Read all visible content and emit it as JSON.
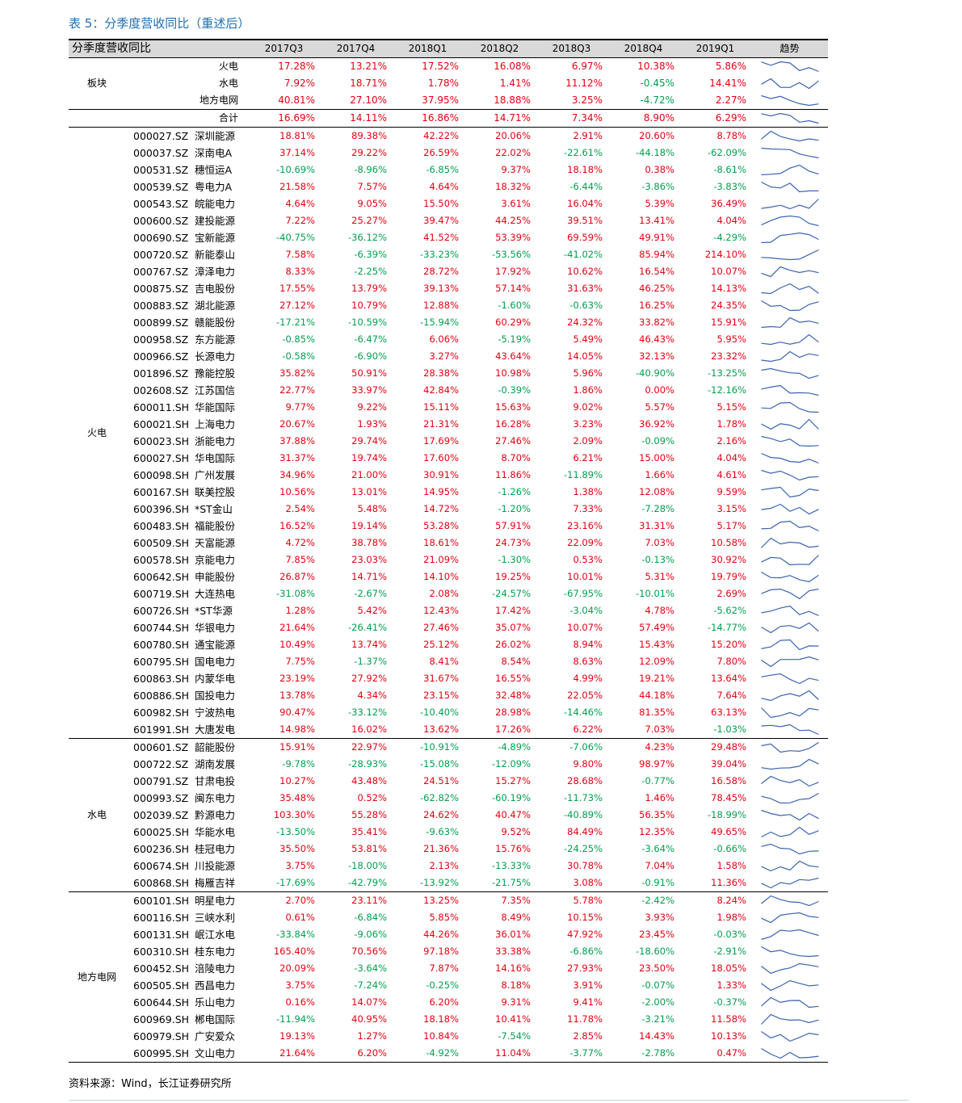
{
  "title": "表 5：分季度营收同比（重述后）",
  "source": "资料来源：Wind，长江证券研究所",
  "colors": {
    "positive": "#e60012",
    "negative": "#00a050",
    "header_bg": "#d9d9d9",
    "title": "#1f6fb0",
    "sparkline": "#3a64b0"
  },
  "header": {
    "label": "分季度营收同比",
    "quarters": [
      "2017Q3",
      "2017Q4",
      "2018Q1",
      "2018Q2",
      "2018Q3",
      "2018Q4",
      "2019Q1"
    ],
    "trend": "趋势"
  },
  "sector_group": {
    "label": "板块",
    "rows": [
      {
        "name": "火电",
        "values": [
          "17.28%",
          "13.21%",
          "17.52%",
          "16.08%",
          "6.97%",
          "10.38%",
          "5.86%"
        ]
      },
      {
        "name": "水电",
        "values": [
          "7.92%",
          "18.71%",
          "1.78%",
          "1.41%",
          "11.12%",
          "-0.45%",
          "14.41%"
        ]
      },
      {
        "name": "地方电网",
        "values": [
          "40.81%",
          "27.10%",
          "37.95%",
          "18.88%",
          "3.25%",
          "-4.72%",
          "2.27%"
        ]
      }
    ]
  },
  "total": {
    "name": "合计",
    "values": [
      "16.69%",
      "14.11%",
      "16.86%",
      "14.71%",
      "7.34%",
      "8.90%",
      "6.29%"
    ]
  },
  "groups": [
    {
      "label": "火电",
      "rows": [
        {
          "code": "000027.SZ",
          "name": "深圳能源",
          "values": [
            "18.81%",
            "89.38%",
            "42.22%",
            "20.06%",
            "2.91%",
            "20.60%",
            "8.78%"
          ]
        },
        {
          "code": "000037.SZ",
          "name": "深南电A",
          "values": [
            "37.14%",
            "29.22%",
            "26.59%",
            "22.02%",
            "-22.61%",
            "-44.18%",
            "-62.09%"
          ]
        },
        {
          "code": "000531.SZ",
          "name": "穗恒运A",
          "values": [
            "-10.69%",
            "-8.96%",
            "-6.85%",
            "9.37%",
            "18.18%",
            "0.38%",
            "-8.61%"
          ]
        },
        {
          "code": "000539.SZ",
          "name": "粤电力A",
          "values": [
            "21.58%",
            "7.57%",
            "4.64%",
            "18.32%",
            "-6.44%",
            "-3.86%",
            "-3.83%"
          ]
        },
        {
          "code": "000543.SZ",
          "name": "皖能电力",
          "values": [
            "4.64%",
            "9.05%",
            "15.50%",
            "3.61%",
            "16.04%",
            "5.39%",
            "36.49%"
          ]
        },
        {
          "code": "000600.SZ",
          "name": "建投能源",
          "values": [
            "7.22%",
            "25.27%",
            "39.47%",
            "44.25%",
            "39.51%",
            "13.41%",
            "4.04%"
          ]
        },
        {
          "code": "000690.SZ",
          "name": "宝新能源",
          "values": [
            "-40.75%",
            "-36.12%",
            "41.52%",
            "53.39%",
            "69.59%",
            "49.91%",
            "-4.29%"
          ]
        },
        {
          "code": "000720.SZ",
          "name": "新能泰山",
          "values": [
            "7.58%",
            "-6.39%",
            "-33.23%",
            "-53.56%",
            "-41.02%",
            "85.94%",
            "214.10%"
          ]
        },
        {
          "code": "000767.SZ",
          "name": "漳泽电力",
          "values": [
            "8.33%",
            "-2.25%",
            "28.72%",
            "17.92%",
            "10.62%",
            "16.54%",
            "10.07%"
          ]
        },
        {
          "code": "000875.SZ",
          "name": "吉电股份",
          "values": [
            "17.55%",
            "13.79%",
            "39.13%",
            "57.14%",
            "31.63%",
            "46.25%",
            "14.13%"
          ]
        },
        {
          "code": "000883.SZ",
          "name": "湖北能源",
          "values": [
            "27.12%",
            "10.79%",
            "12.88%",
            "-1.60%",
            "-0.63%",
            "16.25%",
            "24.35%"
          ]
        },
        {
          "code": "000899.SZ",
          "name": "赣能股份",
          "values": [
            "-17.21%",
            "-10.59%",
            "-15.94%",
            "60.29%",
            "24.32%",
            "33.82%",
            "15.91%"
          ]
        },
        {
          "code": "000958.SZ",
          "name": "东方能源",
          "values": [
            "-0.85%",
            "-6.47%",
            "6.06%",
            "-5.19%",
            "5.49%",
            "46.43%",
            "5.95%"
          ]
        },
        {
          "code": "000966.SZ",
          "name": "长源电力",
          "values": [
            "-0.58%",
            "-6.90%",
            "3.27%",
            "43.64%",
            "14.05%",
            "32.13%",
            "23.32%"
          ]
        },
        {
          "code": "001896.SZ",
          "name": "豫能控股",
          "values": [
            "35.82%",
            "50.91%",
            "28.38%",
            "10.98%",
            "5.96%",
            "-40.90%",
            "-13.25%"
          ]
        },
        {
          "code": "002608.SZ",
          "name": "江苏国信",
          "values": [
            "22.77%",
            "33.97%",
            "42.84%",
            "-0.39%",
            "1.86%",
            "0.00%",
            "-12.16%"
          ]
        },
        {
          "code": "600011.SH",
          "name": "华能国际",
          "values": [
            "9.77%",
            "9.22%",
            "15.11%",
            "15.63%",
            "9.02%",
            "5.57%",
            "5.15%"
          ]
        },
        {
          "code": "600021.SH",
          "name": "上海电力",
          "values": [
            "20.67%",
            "1.93%",
            "21.31%",
            "16.28%",
            "3.23%",
            "36.92%",
            "1.78%"
          ]
        },
        {
          "code": "600023.SH",
          "name": "浙能电力",
          "values": [
            "37.88%",
            "29.74%",
            "17.69%",
            "27.46%",
            "2.09%",
            "-0.09%",
            "2.16%"
          ]
        },
        {
          "code": "600027.SH",
          "name": "华电国际",
          "values": [
            "31.37%",
            "19.74%",
            "17.60%",
            "8.70%",
            "6.21%",
            "15.00%",
            "4.04%"
          ]
        },
        {
          "code": "600098.SH",
          "name": "广州发展",
          "values": [
            "34.96%",
            "21.00%",
            "30.91%",
            "11.86%",
            "-11.89%",
            "1.66%",
            "4.61%"
          ]
        },
        {
          "code": "600167.SH",
          "name": "联美控股",
          "values": [
            "10.56%",
            "13.01%",
            "14.95%",
            "-1.26%",
            "1.38%",
            "12.08%",
            "9.59%"
          ]
        },
        {
          "code": "600396.SH",
          "name": "*ST金山",
          "values": [
            "2.54%",
            "5.48%",
            "14.72%",
            "-1.20%",
            "7.33%",
            "-7.28%",
            "3.15%"
          ]
        },
        {
          "code": "600483.SH",
          "name": "福能股份",
          "values": [
            "16.52%",
            "19.14%",
            "53.28%",
            "57.91%",
            "23.16%",
            "31.31%",
            "5.17%"
          ]
        },
        {
          "code": "600509.SH",
          "name": "天富能源",
          "values": [
            "4.72%",
            "38.78%",
            "18.61%",
            "24.73%",
            "22.09%",
            "7.03%",
            "10.58%"
          ]
        },
        {
          "code": "600578.SH",
          "name": "京能电力",
          "values": [
            "7.85%",
            "23.03%",
            "21.09%",
            "-1.30%",
            "0.53%",
            "-0.13%",
            "30.92%"
          ]
        },
        {
          "code": "600642.SH",
          "name": "申能股份",
          "values": [
            "26.87%",
            "14.71%",
            "14.10%",
            "19.25%",
            "10.01%",
            "5.31%",
            "19.79%"
          ]
        },
        {
          "code": "600719.SH",
          "name": "大连热电",
          "values": [
            "-31.08%",
            "-2.67%",
            "2.08%",
            "-24.57%",
            "-67.95%",
            "-10.01%",
            "2.69%"
          ]
        },
        {
          "code": "600726.SH",
          "name": "*ST华源",
          "values": [
            "1.28%",
            "5.42%",
            "12.43%",
            "17.42%",
            "-3.04%",
            "4.78%",
            "-5.62%"
          ]
        },
        {
          "code": "600744.SH",
          "name": "华银电力",
          "values": [
            "21.64%",
            "-26.41%",
            "27.46%",
            "35.07%",
            "10.07%",
            "57.49%",
            "-14.77%"
          ]
        },
        {
          "code": "600780.SH",
          "name": "通宝能源",
          "values": [
            "10.49%",
            "13.74%",
            "25.12%",
            "26.02%",
            "8.94%",
            "15.43%",
            "15.20%"
          ]
        },
        {
          "code": "600795.SH",
          "name": "国电电力",
          "values": [
            "7.75%",
            "-1.37%",
            "8.41%",
            "8.54%",
            "8.63%",
            "12.09%",
            "7.80%"
          ]
        },
        {
          "code": "600863.SH",
          "name": "内蒙华电",
          "values": [
            "23.19%",
            "27.92%",
            "31.67%",
            "16.55%",
            "4.99%",
            "19.21%",
            "13.64%"
          ]
        },
        {
          "code": "600886.SH",
          "name": "国投电力",
          "values": [
            "13.78%",
            "4.34%",
            "23.15%",
            "32.48%",
            "22.05%",
            "44.18%",
            "7.64%"
          ]
        },
        {
          "code": "600982.SH",
          "name": "宁波热电",
          "values": [
            "90.47%",
            "-33.12%",
            "-10.40%",
            "28.98%",
            "-14.46%",
            "81.35%",
            "63.13%"
          ]
        },
        {
          "code": "601991.SH",
          "name": "大唐发电",
          "values": [
            "14.98%",
            "16.02%",
            "13.62%",
            "17.26%",
            "6.22%",
            "7.03%",
            "-1.03%"
          ]
        }
      ]
    },
    {
      "label": "水电",
      "rows": [
        {
          "code": "000601.SZ",
          "name": "韶能股份",
          "values": [
            "15.91%",
            "22.97%",
            "-10.91%",
            "-4.89%",
            "-7.06%",
            "4.23%",
            "29.48%"
          ]
        },
        {
          "code": "000722.SZ",
          "name": "湖南发展",
          "values": [
            "-9.78%",
            "-28.93%",
            "-15.08%",
            "-12.09%",
            "9.80%",
            "98.97%",
            "39.04%"
          ]
        },
        {
          "code": "000791.SZ",
          "name": "甘肃电投",
          "values": [
            "10.27%",
            "43.48%",
            "24.51%",
            "15.27%",
            "28.68%",
            "-0.77%",
            "16.58%"
          ]
        },
        {
          "code": "000993.SZ",
          "name": "闽东电力",
          "values": [
            "35.48%",
            "0.52%",
            "-62.82%",
            "-60.19%",
            "-11.73%",
            "1.46%",
            "78.45%"
          ]
        },
        {
          "code": "002039.SZ",
          "name": "黔源电力",
          "values": [
            "103.30%",
            "55.28%",
            "24.62%",
            "40.47%",
            "-40.89%",
            "56.35%",
            "-18.99%"
          ]
        },
        {
          "code": "600025.SH",
          "name": "华能水电",
          "values": [
            "-13.50%",
            "35.41%",
            "-9.63%",
            "9.52%",
            "84.49%",
            "12.35%",
            "49.65%"
          ]
        },
        {
          "code": "600236.SH",
          "name": "桂冠电力",
          "values": [
            "35.50%",
            "53.81%",
            "21.36%",
            "15.76%",
            "-24.25%",
            "-3.64%",
            "-0.66%"
          ]
        },
        {
          "code": "600674.SH",
          "name": "川投能源",
          "values": [
            "3.75%",
            "-18.00%",
            "2.13%",
            "-13.33%",
            "30.78%",
            "7.04%",
            "1.58%"
          ]
        },
        {
          "code": "600868.SH",
          "name": "梅雁吉祥",
          "values": [
            "-17.69%",
            "-42.79%",
            "-13.92%",
            "-21.75%",
            "3.08%",
            "-0.91%",
            "11.36%"
          ]
        }
      ]
    },
    {
      "label": "地方电网",
      "rows": [
        {
          "code": "600101.SH",
          "name": "明星电力",
          "values": [
            "2.70%",
            "23.11%",
            "13.25%",
            "7.35%",
            "5.78%",
            "-2.42%",
            "8.24%"
          ]
        },
        {
          "code": "600116.SH",
          "name": "三峡水利",
          "values": [
            "0.61%",
            "-6.84%",
            "5.85%",
            "8.49%",
            "10.15%",
            "3.93%",
            "1.98%"
          ]
        },
        {
          "code": "600131.SH",
          "name": "岷江水电",
          "values": [
            "-33.84%",
            "-9.06%",
            "44.26%",
            "36.01%",
            "47.92%",
            "23.45%",
            "-0.03%"
          ]
        },
        {
          "code": "600310.SH",
          "name": "桂东电力",
          "values": [
            "165.40%",
            "70.56%",
            "97.18%",
            "33.38%",
            "-6.86%",
            "-18.60%",
            "-2.91%"
          ]
        },
        {
          "code": "600452.SH",
          "name": "涪陵电力",
          "values": [
            "20.09%",
            "-3.64%",
            "7.87%",
            "14.16%",
            "27.93%",
            "23.50%",
            "18.05%"
          ]
        },
        {
          "code": "600505.SH",
          "name": "西昌电力",
          "values": [
            "3.75%",
            "-7.24%",
            "-0.25%",
            "8.18%",
            "3.91%",
            "-0.07%",
            "1.33%"
          ]
        },
        {
          "code": "600644.SH",
          "name": "乐山电力",
          "values": [
            "0.16%",
            "14.07%",
            "6.20%",
            "9.31%",
            "9.41%",
            "-2.00%",
            "-0.37%"
          ]
        },
        {
          "code": "600969.SH",
          "name": "郴电国际",
          "values": [
            "-11.94%",
            "40.95%",
            "18.18%",
            "10.41%",
            "11.78%",
            "-3.21%",
            "11.58%"
          ]
        },
        {
          "code": "600979.SH",
          "name": "广安爱众",
          "values": [
            "19.13%",
            "1.27%",
            "10.84%",
            "-7.54%",
            "2.85%",
            "14.43%",
            "10.13%"
          ]
        },
        {
          "code": "600995.SH",
          "name": "文山电力",
          "values": [
            "21.64%",
            "6.20%",
            "-4.92%",
            "11.04%",
            "-3.77%",
            "-2.78%",
            "0.47%"
          ]
        }
      ]
    }
  ]
}
